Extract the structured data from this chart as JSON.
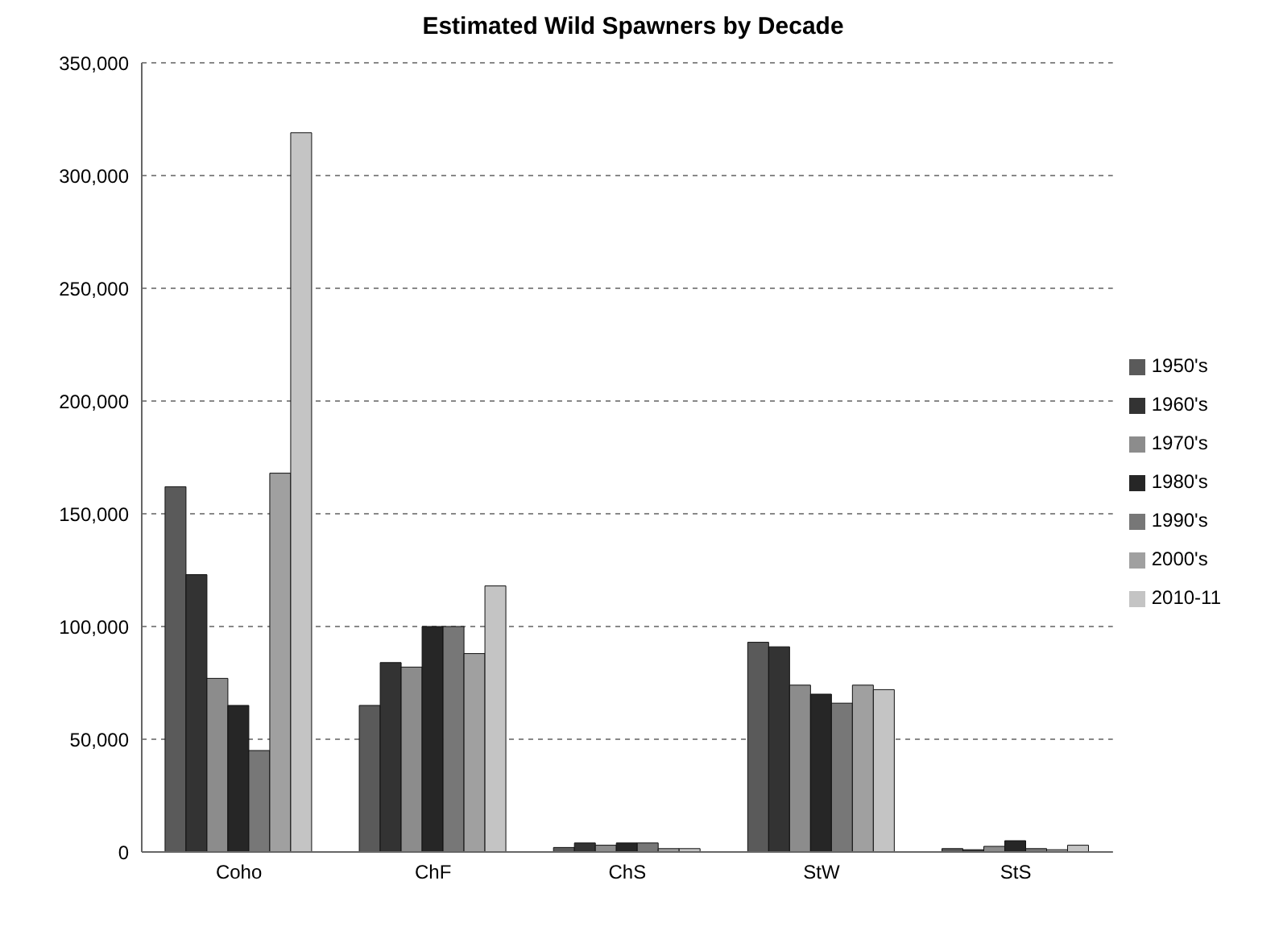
{
  "chart_data": {
    "type": "bar",
    "title": "Estimated Wild Spawners by Decade",
    "categories": [
      "Coho",
      "ChF",
      "ChS",
      "StW",
      "StS"
    ],
    "series": [
      {
        "name": "1950's",
        "color": "#5a5a5a",
        "values": [
          162000,
          65000,
          2000,
          93000,
          1500
        ]
      },
      {
        "name": "1960's",
        "color": "#333333",
        "values": [
          123000,
          84000,
          4000,
          91000,
          1000
        ]
      },
      {
        "name": "1970's",
        "color": "#8c8c8c",
        "values": [
          77000,
          82000,
          3000,
          74000,
          2500
        ]
      },
      {
        "name": "1980's",
        "color": "#262626",
        "values": [
          65000,
          100000,
          4000,
          70000,
          5000
        ]
      },
      {
        "name": "1990's",
        "color": "#777777",
        "values": [
          45000,
          100000,
          4000,
          66000,
          1500
        ]
      },
      {
        "name": "2000's",
        "color": "#a0a0a0",
        "values": [
          168000,
          88000,
          1500,
          74000,
          1000
        ]
      },
      {
        "name": "2010-11",
        "color": "#c4c4c4",
        "values": [
          319000,
          118000,
          1500,
          72000,
          3000
        ]
      }
    ],
    "ylim": [
      0,
      350000
    ],
    "yticks": [
      0,
      {
        "value": 50000,
        "label": "50,000"
      },
      {
        "value": 100000,
        "label": "100,000"
      },
      {
        "value": 150000,
        "label": "150,000"
      },
      {
        "value": 200000,
        "label": "200,000"
      },
      {
        "value": 250000,
        "label": "250,000"
      },
      {
        "value": 300000,
        "label": "300,000"
      },
      {
        "value": 350000,
        "label": "350,000"
      }
    ],
    "grid": "y",
    "legend": "right"
  }
}
